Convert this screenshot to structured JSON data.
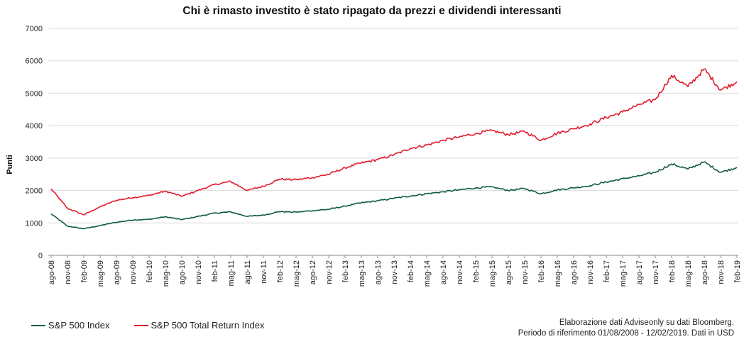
{
  "chart_data": {
    "type": "line",
    "title": "Chi è rimasto investito è stato ripagato da prezzi e dividendi interessanti",
    "ylabel": "Punti",
    "xlabel": "",
    "ylim": [
      0,
      7000
    ],
    "yticks": [
      0,
      1000,
      2000,
      3000,
      4000,
      5000,
      6000,
      7000
    ],
    "grid": true,
    "legend_position": "bottom-left",
    "x_tick_labels": [
      "ago-08",
      "nov-08",
      "feb-09",
      "mag-09",
      "ago-09",
      "nov-09",
      "feb-10",
      "mag-10",
      "ago-10",
      "nov-10",
      "feb-11",
      "mag-11",
      "ago-11",
      "nov-11",
      "feb-12",
      "mag-12",
      "ago-12",
      "nov-12",
      "feb-13",
      "mag-13",
      "ago-13",
      "nov-13",
      "feb-14",
      "mag-14",
      "ago-14",
      "nov-14",
      "feb-15",
      "mag-15",
      "ago-15",
      "nov-15",
      "feb-16",
      "mag-16",
      "ago-16",
      "nov-16",
      "feb-17",
      "mag-17",
      "ago-17",
      "nov-17",
      "feb-18",
      "mag-18",
      "ago-18",
      "nov-18",
      "feb-19"
    ],
    "x": [
      "ago-08",
      "nov-08",
      "feb-09",
      "mag-09",
      "ago-09",
      "nov-09",
      "feb-10",
      "mag-10",
      "ago-10",
      "nov-10",
      "feb-11",
      "mag-11",
      "ago-11",
      "nov-11",
      "feb-12",
      "mag-12",
      "ago-12",
      "nov-12",
      "feb-13",
      "mag-13",
      "ago-13",
      "nov-13",
      "feb-14",
      "mag-14",
      "ago-14",
      "nov-14",
      "feb-15",
      "mag-15",
      "ago-15",
      "nov-15",
      "feb-16",
      "mag-16",
      "ago-16",
      "nov-16",
      "feb-17",
      "mag-17",
      "ago-17",
      "nov-17",
      "feb-18",
      "mag-18",
      "ago-18",
      "nov-18",
      "feb-19"
    ],
    "series": [
      {
        "name": "S&P 500 Total Return Index",
        "color": "#e31b2c",
        "values": [
          2050,
          1450,
          1250,
          1500,
          1700,
          1780,
          1850,
          1980,
          1820,
          2000,
          2180,
          2280,
          2000,
          2130,
          2350,
          2330,
          2400,
          2500,
          2700,
          2850,
          2950,
          3100,
          3300,
          3400,
          3550,
          3650,
          3760,
          3850,
          3720,
          3820,
          3550,
          3770,
          3900,
          4050,
          4250,
          4420,
          4650,
          4800,
          5550,
          5200,
          5750,
          5100,
          5350
        ]
      },
      {
        "name": "S&P 500 Index",
        "color": "#0f5a45",
        "values": [
          1280,
          900,
          820,
          920,
          1020,
          1090,
          1110,
          1190,
          1100,
          1200,
          1300,
          1340,
          1200,
          1240,
          1350,
          1330,
          1380,
          1420,
          1520,
          1620,
          1680,
          1760,
          1830,
          1900,
          1960,
          2020,
          2080,
          2110,
          2000,
          2060,
          1900,
          2020,
          2080,
          2150,
          2260,
          2360,
          2450,
          2560,
          2820,
          2660,
          2880,
          2560,
          2710
        ]
      }
    ]
  },
  "footer": {
    "source_line1": "Elaborazione dati Adviseonly su dati Bloomberg.",
    "source_line2": "Periodo di riferimento 01/08/2008 - 12/02/2019. Dati in USD"
  }
}
